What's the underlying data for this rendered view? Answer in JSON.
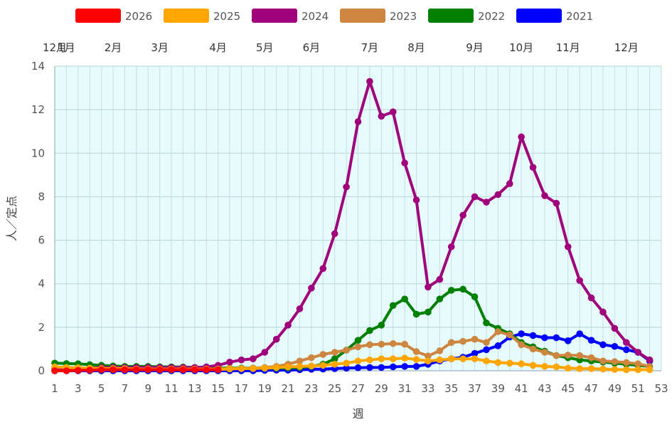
{
  "chart_data": {
    "type": "line",
    "title": "",
    "xlabel": "週",
    "ylabel": "人／定点",
    "xlim": [
      1,
      53
    ],
    "ylim": [
      0,
      14
    ],
    "grid": true,
    "legend_position": "top",
    "plot_background": "#e6fbfc",
    "x_ticks": [
      "1",
      "3",
      "5",
      "7",
      "9",
      "11",
      "13",
      "15",
      "17",
      "19",
      "21",
      "23",
      "25",
      "27",
      "29",
      "31",
      "33",
      "35",
      "37",
      "39",
      "41",
      "43",
      "45",
      "47",
      "49",
      "51",
      "53"
    ],
    "y_ticks": [
      "0",
      "2",
      "4",
      "6",
      "8",
      "10",
      "12",
      "14"
    ],
    "month_labels": [
      {
        "label": "12月",
        "week": 1
      },
      {
        "label": "1月",
        "week": 2
      },
      {
        "label": "2月",
        "week": 6
      },
      {
        "label": "3月",
        "week": 10
      },
      {
        "label": "4月",
        "week": 15
      },
      {
        "label": "5月",
        "week": 19
      },
      {
        "label": "6月",
        "week": 23
      },
      {
        "label": "7月",
        "week": 28
      },
      {
        "label": "8月",
        "week": 32
      },
      {
        "label": "9月",
        "week": 37
      },
      {
        "label": "10月",
        "week": 41
      },
      {
        "label": "11月",
        "week": 45
      },
      {
        "label": "12月",
        "week": 50
      }
    ],
    "x": [
      1,
      2,
      3,
      4,
      5,
      6,
      7,
      8,
      9,
      10,
      11,
      12,
      13,
      14,
      15,
      16,
      17,
      18,
      19,
      20,
      21,
      22,
      23,
      24,
      25,
      26,
      27,
      28,
      29,
      30,
      31,
      32,
      33,
      34,
      35,
      36,
      37,
      38,
      39,
      40,
      41,
      42,
      43,
      44,
      45,
      46,
      47,
      48,
      49,
      50,
      51,
      52
    ],
    "series": [
      {
        "name": "2021",
        "color": "#0000ff",
        "values": [
          0.0,
          0.0,
          0.0,
          0.0,
          0.0,
          0.0,
          0.0,
          0.0,
          0.0,
          0.0,
          0.0,
          0.0,
          0.0,
          0.0,
          0.0,
          0.0,
          0.0,
          0.0,
          0.02,
          0.03,
          0.03,
          0.05,
          0.07,
          0.08,
          0.1,
          0.12,
          0.14,
          0.15,
          0.15,
          0.18,
          0.2,
          0.2,
          0.3,
          0.45,
          0.55,
          0.62,
          0.8,
          0.97,
          1.15,
          1.55,
          1.7,
          1.62,
          1.52,
          1.52,
          1.38,
          1.7,
          1.4,
          1.2,
          1.12,
          0.97,
          0.85,
          0.45
        ]
      },
      {
        "name": "2022",
        "color": "#008000",
        "values": [
          0.35,
          0.33,
          0.32,
          0.28,
          0.25,
          0.22,
          0.2,
          0.2,
          0.2,
          0.18,
          0.18,
          0.17,
          0.15,
          0.15,
          0.12,
          0.12,
          0.12,
          0.12,
          0.12,
          0.12,
          0.13,
          0.15,
          0.2,
          0.3,
          0.55,
          0.95,
          1.4,
          1.85,
          2.1,
          3.0,
          3.3,
          2.6,
          2.7,
          3.3,
          3.7,
          3.75,
          3.4,
          2.2,
          1.95,
          1.7,
          1.3,
          1.1,
          0.9,
          0.7,
          0.6,
          0.5,
          0.45,
          0.4,
          0.35,
          0.3,
          0.25,
          0.2
        ]
      },
      {
        "name": "2023",
        "color": "#cd853f",
        "values": [
          0.05,
          0.05,
          0.05,
          0.05,
          0.05,
          0.05,
          0.05,
          0.05,
          0.05,
          0.05,
          0.05,
          0.05,
          0.05,
          0.05,
          0.05,
          0.08,
          0.1,
          0.12,
          0.15,
          0.2,
          0.3,
          0.45,
          0.6,
          0.75,
          0.85,
          0.95,
          1.1,
          1.2,
          1.22,
          1.25,
          1.22,
          0.88,
          0.68,
          0.92,
          1.3,
          1.35,
          1.45,
          1.3,
          1.8,
          1.65,
          1.2,
          1.0,
          0.85,
          0.7,
          0.72,
          0.7,
          0.6,
          0.45,
          0.42,
          0.38,
          0.32,
          0.2
        ]
      },
      {
        "name": "2024",
        "color": "#a0007c",
        "values": [
          0.1,
          0.1,
          0.1,
          0.12,
          0.15,
          0.15,
          0.15,
          0.15,
          0.15,
          0.15,
          0.15,
          0.15,
          0.15,
          0.18,
          0.25,
          0.4,
          0.5,
          0.55,
          0.85,
          1.45,
          2.1,
          2.85,
          3.8,
          4.7,
          6.3,
          8.45,
          11.45,
          13.3,
          11.7,
          11.9,
          9.55,
          7.85,
          3.85,
          4.2,
          5.7,
          7.15,
          8.0,
          7.75,
          8.1,
          8.6,
          10.75,
          9.35,
          8.05,
          7.7,
          5.7,
          4.15,
          3.35,
          2.7,
          1.95,
          1.3,
          0.85,
          0.5
        ]
      },
      {
        "name": "2025",
        "color": "#ffa500",
        "values": [
          0.18,
          0.15,
          0.14,
          0.12,
          0.1,
          0.1,
          0.1,
          0.08,
          0.08,
          0.08,
          0.08,
          0.08,
          0.08,
          0.08,
          0.08,
          0.1,
          0.1,
          0.1,
          0.12,
          0.15,
          0.18,
          0.2,
          0.22,
          0.25,
          0.3,
          0.35,
          0.45,
          0.5,
          0.55,
          0.55,
          0.58,
          0.52,
          0.45,
          0.5,
          0.55,
          0.55,
          0.55,
          0.45,
          0.38,
          0.35,
          0.32,
          0.25,
          0.2,
          0.18,
          0.12,
          0.1,
          0.1,
          0.08,
          0.06,
          0.05,
          0.05,
          0.05
        ]
      },
      {
        "name": "2026",
        "color": "#ff0000",
        "values": [
          0.0,
          0.0,
          0.02,
          0.03,
          0.05,
          0.05,
          0.05,
          0.05,
          0.05,
          0.05,
          0.05,
          0.05,
          0.05,
          0.05,
          0.05,
          null,
          null,
          null,
          null,
          null,
          null,
          null,
          null,
          null,
          null,
          null,
          null,
          null,
          null,
          null,
          null,
          null,
          null,
          null,
          null,
          null,
          null,
          null,
          null,
          null,
          null,
          null,
          null,
          null,
          null,
          null,
          null,
          null,
          null,
          null,
          null,
          null
        ]
      }
    ],
    "legend_order": [
      "2026",
      "2025",
      "2024",
      "2023",
      "2022",
      "2021"
    ],
    "draw_order": [
      "2021",
      "2022",
      "2023",
      "2024",
      "2025",
      "2026"
    ]
  }
}
